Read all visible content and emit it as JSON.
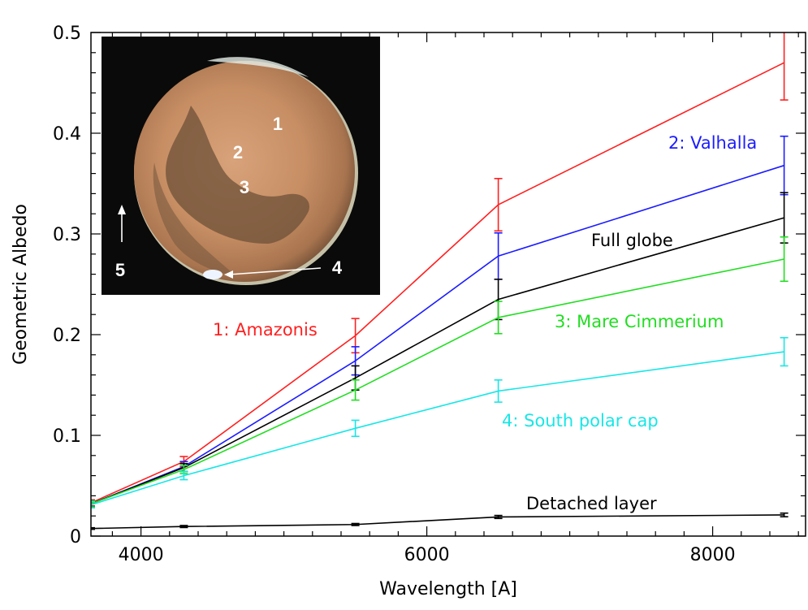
{
  "chart_data": {
    "type": "line",
    "title": "",
    "xlabel": "Wavelength [A]",
    "ylabel": "Geometric Albedo",
    "xlim": [
      3650,
      8650
    ],
    "ylim": [
      0,
      0.5
    ],
    "xticks": [
      4000,
      6000,
      8000
    ],
    "xtick_labels": [
      "4000",
      "6000",
      "8000"
    ],
    "yticks": [
      0,
      0.1,
      0.2,
      0.3,
      0.4,
      0.5
    ],
    "ytick_labels": [
      "0",
      "0.1",
      "0.2",
      "0.3",
      "0.4",
      "0.5"
    ],
    "grid": false,
    "x": [
      3650,
      4300,
      5500,
      6500,
      8500
    ],
    "series": [
      {
        "name": "1: Amazonis",
        "color": "#ff2020",
        "values": [
          0.033,
          0.074,
          0.199,
          0.329,
          0.47
        ],
        "errors": [
          0.003,
          0.005,
          0.017,
          0.026,
          0.037
        ]
      },
      {
        "name": "2: Valhalla",
        "color": "#1c1cff",
        "values": [
          0.032,
          0.069,
          0.174,
          0.278,
          0.368
        ],
        "errors": [
          0.003,
          0.005,
          0.014,
          0.023,
          0.029
        ]
      },
      {
        "name": "Full globe",
        "color": "#000000",
        "values": [
          0.032,
          0.068,
          0.157,
          0.235,
          0.316
        ],
        "errors": [
          0.003,
          0.004,
          0.012,
          0.02,
          0.025
        ]
      },
      {
        "name": "3: Mare Cimmerium",
        "color": "#22dd22",
        "values": [
          0.032,
          0.066,
          0.145,
          0.217,
          0.275
        ],
        "errors": [
          0.003,
          0.004,
          0.01,
          0.016,
          0.022
        ]
      },
      {
        "name": "4: South polar cap",
        "color": "#19e6e6",
        "values": [
          0.031,
          0.06,
          0.107,
          0.144,
          0.183
        ],
        "errors": [
          0.003,
          0.004,
          0.008,
          0.011,
          0.014
        ]
      },
      {
        "name": "Detached layer",
        "color": "#000000",
        "values": [
          0.0075,
          0.0095,
          0.0115,
          0.019,
          0.021
        ],
        "errors": [
          0.0008,
          0.001,
          0.001,
          0.0015,
          0.0018
        ]
      }
    ],
    "inset": {
      "description_labels": [
        "1",
        "2",
        "3",
        "4",
        "5"
      ]
    }
  }
}
